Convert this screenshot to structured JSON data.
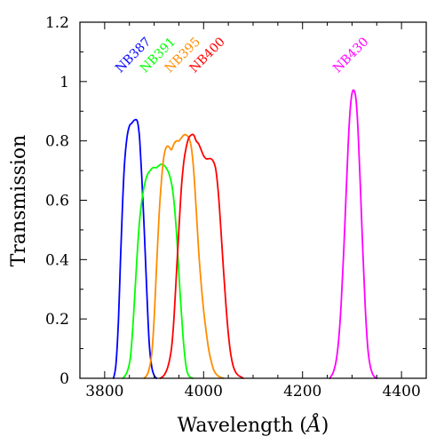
{
  "chart_data": {
    "type": "line",
    "title": "",
    "xlabel": "Wavelength",
    "xlabel_unit": "Å",
    "ylabel": "Transmission",
    "xlim": [
      3750,
      4450
    ],
    "ylim": [
      0,
      1.2
    ],
    "x_ticks": [
      3800,
      4000,
      4200,
      4400
    ],
    "y_ticks": [
      0,
      0.2,
      0.4,
      0.6,
      0.8,
      1,
      1.2
    ],
    "x_minor_step": 50,
    "y_minor_step": 0.1,
    "grid": false,
    "legend": "labels above curves",
    "series": [
      {
        "name": "NB387",
        "color": "#0000ff",
        "x": [
          3818,
          3823,
          3828,
          3832,
          3836,
          3840,
          3845,
          3850,
          3855,
          3860,
          3865,
          3868,
          3871,
          3875,
          3880,
          3885,
          3890,
          3895,
          3900,
          3905
        ],
        "y": [
          0.0,
          0.05,
          0.2,
          0.4,
          0.58,
          0.72,
          0.81,
          0.85,
          0.86,
          0.87,
          0.87,
          0.85,
          0.8,
          0.68,
          0.5,
          0.3,
          0.12,
          0.04,
          0.01,
          0.0
        ]
      },
      {
        "name": "NB391",
        "color": "#00ff00",
        "x": [
          3837,
          3845,
          3852,
          3858,
          3864,
          3870,
          3877,
          3885,
          3892,
          3898,
          3905,
          3912,
          3918,
          3924,
          3930,
          3936,
          3941,
          3946,
          3952,
          3958,
          3963,
          3967,
          3972,
          3978
        ],
        "y": [
          0.0,
          0.02,
          0.07,
          0.2,
          0.37,
          0.52,
          0.62,
          0.68,
          0.7,
          0.71,
          0.71,
          0.72,
          0.72,
          0.71,
          0.69,
          0.65,
          0.58,
          0.47,
          0.3,
          0.15,
          0.06,
          0.02,
          0.005,
          0.0
        ]
      },
      {
        "name": "NB395",
        "color": "#ff8c00",
        "x": [
          3880,
          3888,
          3895,
          3900,
          3905,
          3910,
          3915,
          3920,
          3925,
          3930,
          3935,
          3940,
          3945,
          3950,
          3955,
          3960,
          3965,
          3970,
          3975,
          3980,
          3985,
          3990,
          3995,
          4000,
          4005,
          4010,
          4015,
          4020,
          4025,
          4030,
          4035,
          4040
        ],
        "y": [
          0.0,
          0.02,
          0.08,
          0.2,
          0.38,
          0.55,
          0.67,
          0.75,
          0.78,
          0.78,
          0.77,
          0.79,
          0.8,
          0.8,
          0.81,
          0.82,
          0.82,
          0.81,
          0.78,
          0.7,
          0.57,
          0.43,
          0.32,
          0.23,
          0.16,
          0.1,
          0.06,
          0.03,
          0.015,
          0.007,
          0.003,
          0.0
        ]
      },
      {
        "name": "NB400",
        "color": "#ff0000",
        "x": [
          3912,
          3920,
          3928,
          3935,
          3940,
          3945,
          3950,
          3955,
          3960,
          3965,
          3970,
          3975,
          3980,
          3985,
          3990,
          3995,
          4000,
          4005,
          4010,
          4015,
          4020,
          4025,
          4030,
          4035,
          4040,
          4045,
          4050,
          4055,
          4060,
          4065,
          4070,
          4075,
          4080
        ],
        "y": [
          0.0,
          0.01,
          0.04,
          0.1,
          0.2,
          0.35,
          0.5,
          0.64,
          0.73,
          0.78,
          0.81,
          0.82,
          0.82,
          0.8,
          0.79,
          0.77,
          0.75,
          0.74,
          0.74,
          0.74,
          0.73,
          0.7,
          0.62,
          0.5,
          0.37,
          0.25,
          0.15,
          0.08,
          0.04,
          0.02,
          0.01,
          0.005,
          0.0
        ]
      },
      {
        "name": "NB430",
        "color": "#ff00ff",
        "x": [
          4255,
          4262,
          4268,
          4273,
          4278,
          4283,
          4288,
          4292,
          4296,
          4300,
          4304,
          4308,
          4312,
          4317,
          4322,
          4327,
          4332,
          4337,
          4343,
          4350
        ],
        "y": [
          0.0,
          0.02,
          0.06,
          0.13,
          0.25,
          0.42,
          0.62,
          0.78,
          0.9,
          0.96,
          0.97,
          0.94,
          0.84,
          0.64,
          0.42,
          0.23,
          0.1,
          0.04,
          0.01,
          0.0
        ]
      }
    ],
    "series_labels": [
      {
        "text": "NB387",
        "color": "#0000ff",
        "x": 3863,
        "y": 1.02
      },
      {
        "text": "NB391",
        "color": "#00ff00",
        "x": 3913,
        "y": 1.02
      },
      {
        "text": "NB395",
        "color": "#ff8c00",
        "x": 3963,
        "y": 1.02
      },
      {
        "text": "NB400",
        "color": "#ff0000",
        "x": 4013,
        "y": 1.02
      },
      {
        "text": "NB430",
        "color": "#ff00ff",
        "x": 4303,
        "y": 1.02
      }
    ]
  }
}
